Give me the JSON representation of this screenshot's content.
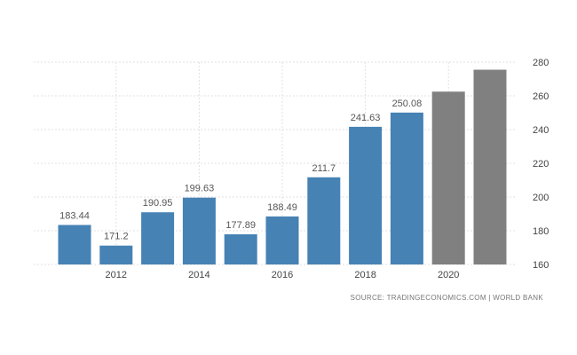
{
  "chart_data": {
    "type": "bar",
    "categories": [
      "2011",
      "2012",
      "2013",
      "2014",
      "2015",
      "2016",
      "2017",
      "2018",
      "2019",
      "2020",
      "2021"
    ],
    "values": [
      183.44,
      171.2,
      190.95,
      199.63,
      177.89,
      188.49,
      211.7,
      241.63,
      250.08,
      262.5,
      275.5
    ],
    "data_labels": [
      "183.44",
      "171.2",
      "190.95",
      "199.63",
      "177.89",
      "188.49",
      "211.7",
      "241.63",
      "250.08",
      "",
      ""
    ],
    "bar_colors": [
      "#4682b4",
      "#4682b4",
      "#4682b4",
      "#4682b4",
      "#4682b4",
      "#4682b4",
      "#4682b4",
      "#4682b4",
      "#4682b4",
      "#808080",
      "#808080"
    ],
    "x_tick_labels": [
      {
        "category": "2012",
        "label": "2012"
      },
      {
        "category": "2014",
        "label": "2014"
      },
      {
        "category": "2016",
        "label": "2016"
      },
      {
        "category": "2018",
        "label": "2018"
      },
      {
        "category": "2020",
        "label": "2020"
      }
    ],
    "y_ticks": [
      160,
      180,
      200,
      220,
      240,
      260,
      280
    ],
    "ylim": [
      160,
      280
    ],
    "y_axis_side": "right",
    "grid": true,
    "title": "",
    "xlabel": "",
    "ylabel": "",
    "source": "SOURCE: TRADINGECONOMICS.COM | WORLD BANK",
    "colors": {
      "actual": "#4682b4",
      "forecast": "#808080",
      "grid": "#e0e0e0"
    }
  }
}
